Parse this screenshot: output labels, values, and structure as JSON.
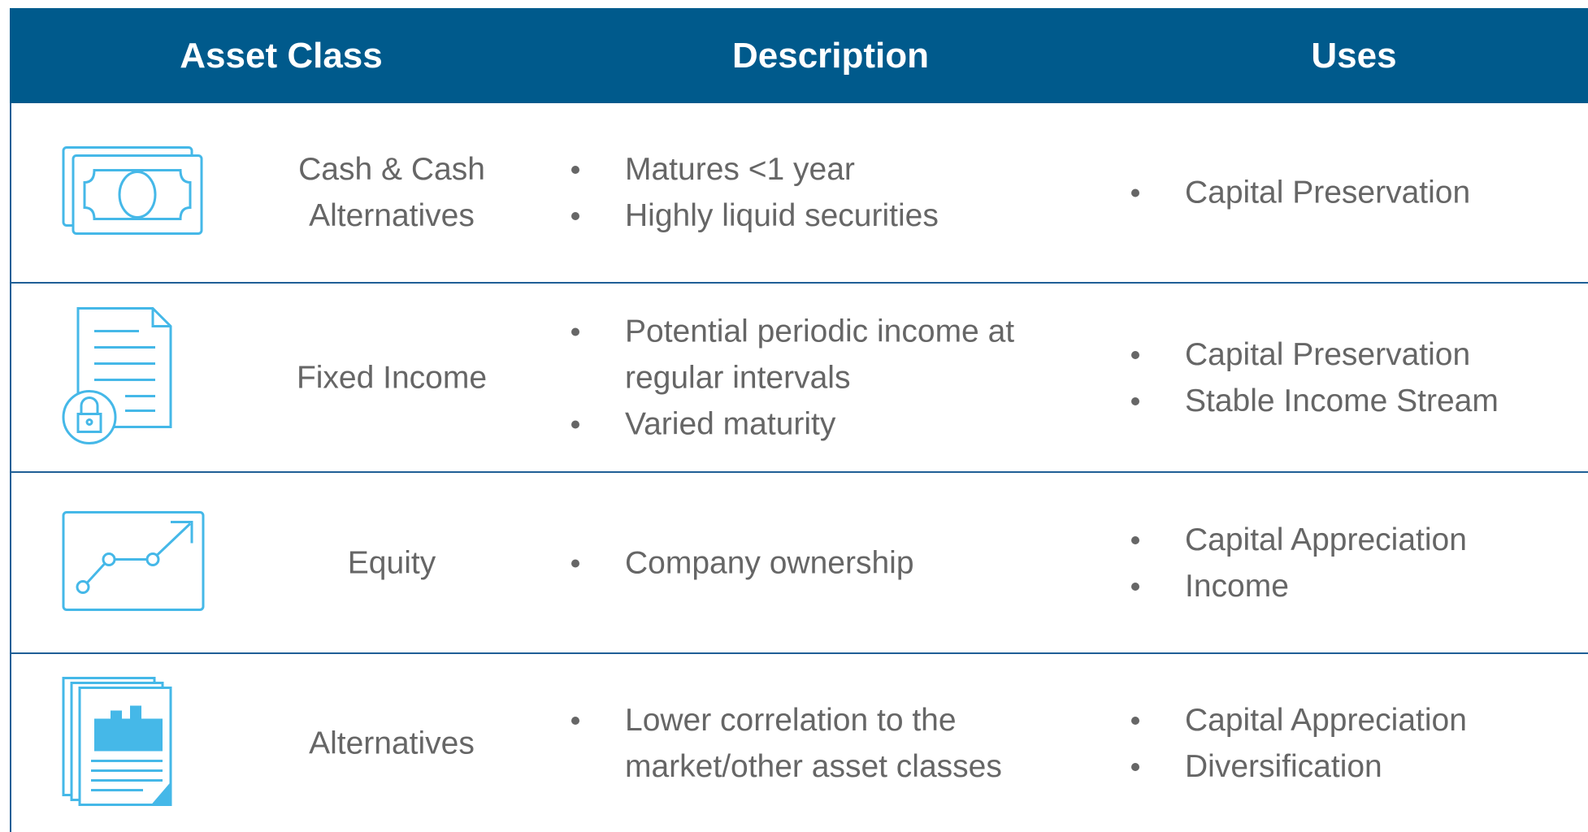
{
  "header": {
    "columns": [
      "Asset Class",
      "Description",
      "Uses"
    ]
  },
  "table": {
    "rows": [
      {
        "asset_class": "Cash & Cash Alternatives",
        "description": [
          "Matures <1 year",
          "Highly liquid securities"
        ],
        "uses": [
          "Capital Preservation"
        ]
      },
      {
        "asset_class": "Fixed Income",
        "description": [
          "Potential periodic income at regular intervals",
          "Varied maturity"
        ],
        "uses": [
          "Capital Preservation",
          "Stable Income Stream"
        ]
      },
      {
        "asset_class": "Equity",
        "description": [
          "Company ownership"
        ],
        "uses": [
          "Capital Appreciation",
          "Income"
        ]
      },
      {
        "asset_class": "Alternatives",
        "description": [
          "Lower correlation to the market/other asset classes"
        ],
        "uses": [
          "Capital Appreciation",
          "Diversification"
        ]
      }
    ]
  }
}
